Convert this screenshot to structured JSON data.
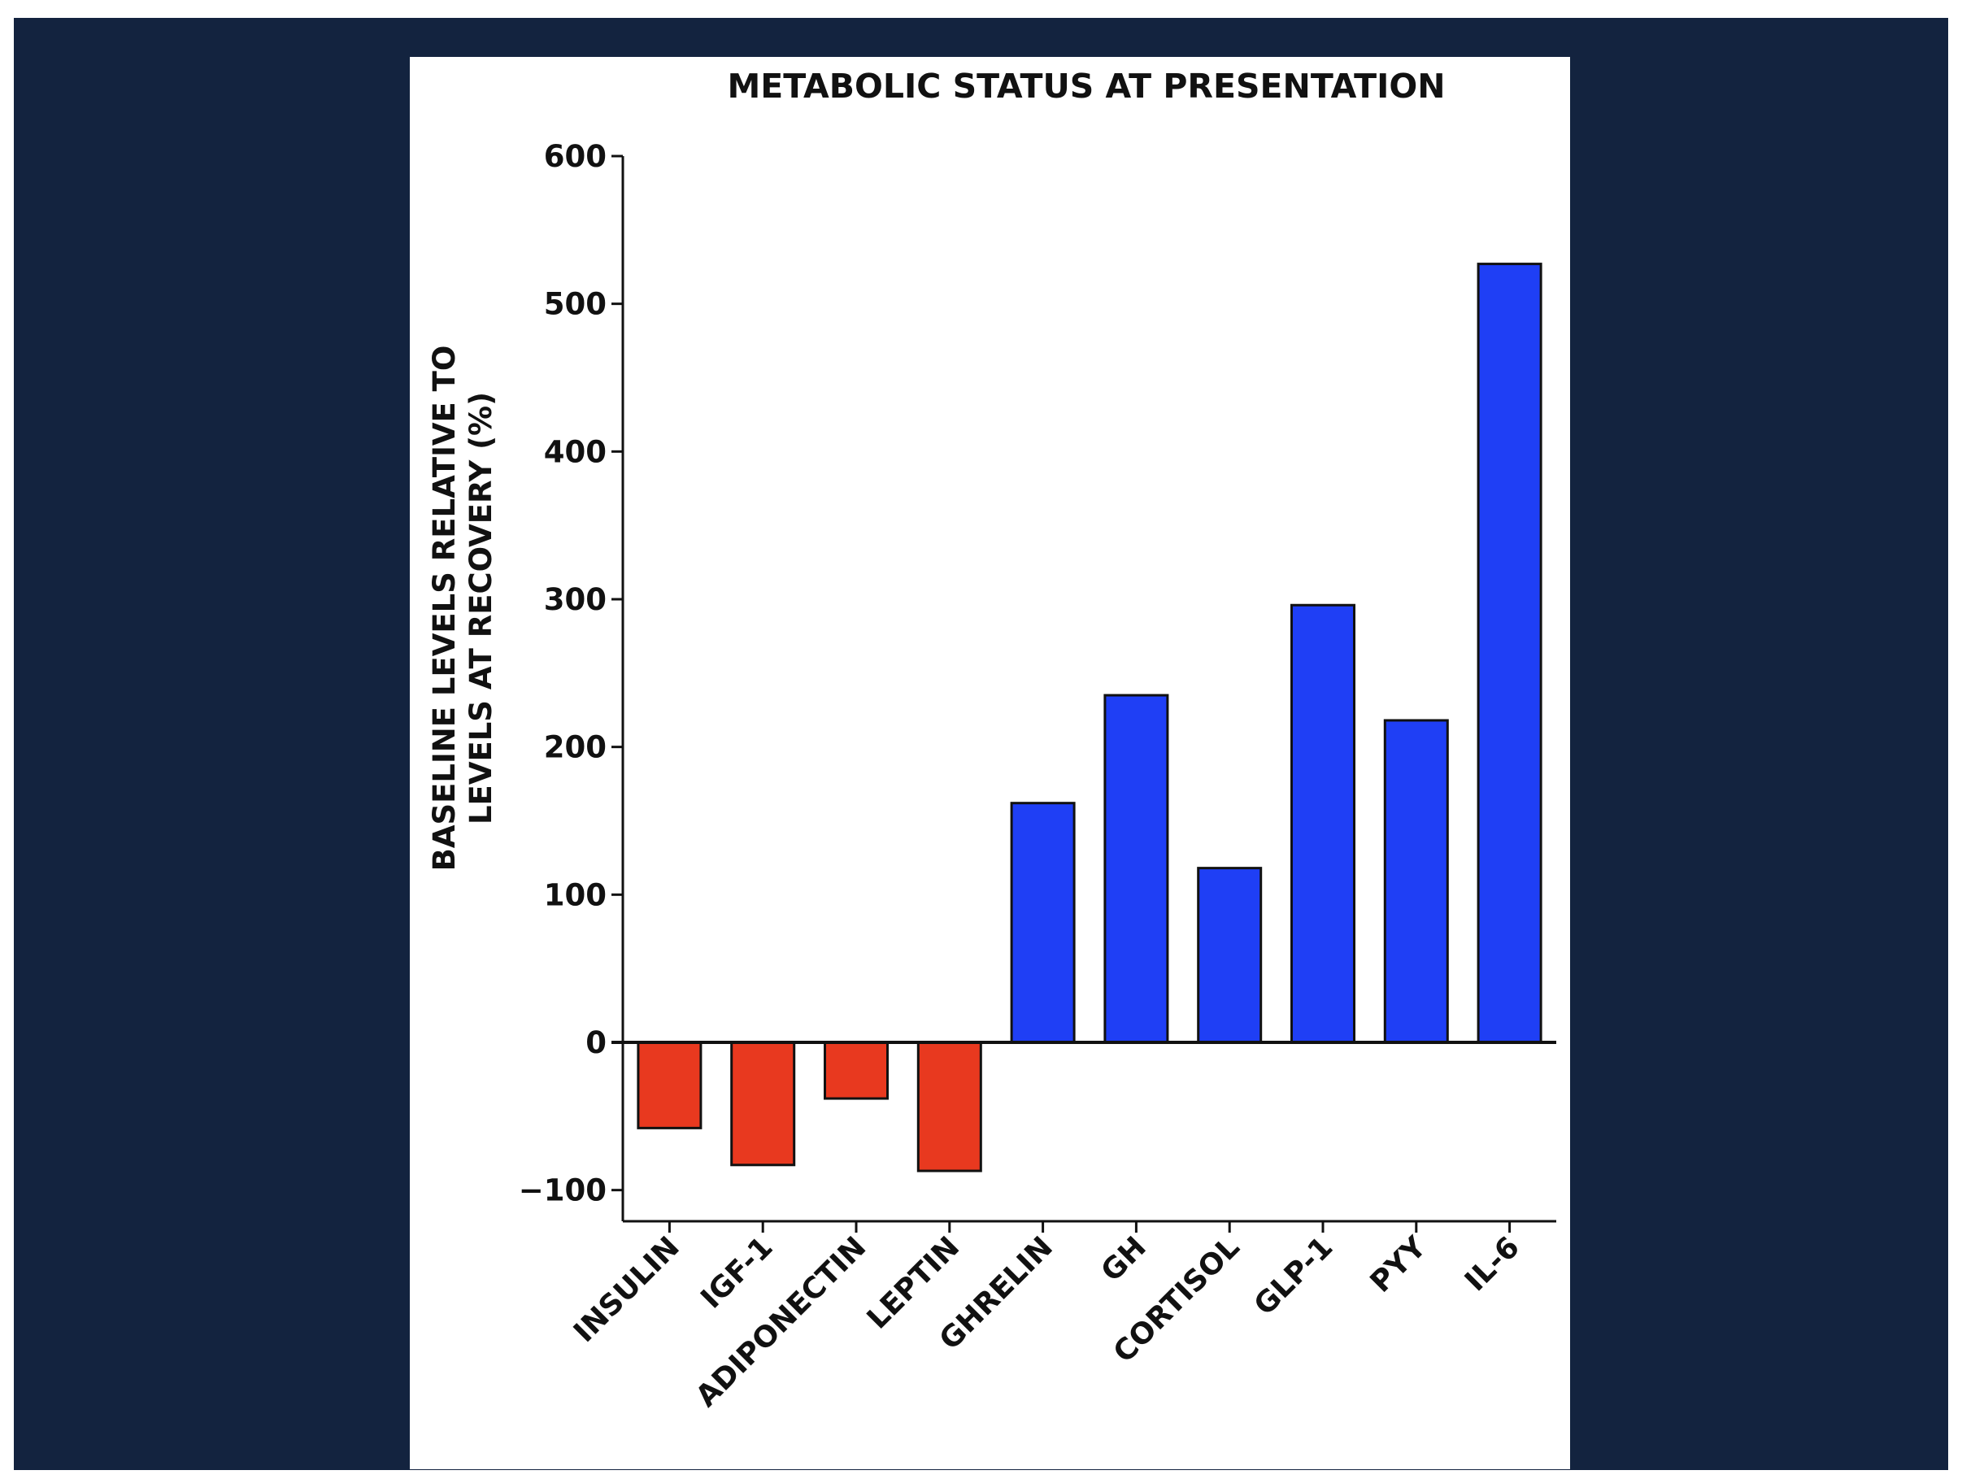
{
  "chart_data": {
    "type": "bar",
    "title": "METABOLIC STATUS AT PRESENTATION",
    "ylabel_lines": [
      "BASELINE LEVELS RELATIVE TO",
      "LEVELS AT RECOVERY (%)"
    ],
    "xlabel": "",
    "categories": [
      "INSULIN",
      "IGF-1",
      "ADIPONECTIN",
      "LEPTIN",
      "GHRELIN",
      "GH",
      "CORTISOL",
      "GLP-1",
      "PYY",
      "IL-6"
    ],
    "values": [
      -58,
      -83,
      -38,
      -87,
      162,
      235,
      118,
      296,
      218,
      527
    ],
    "ylim": [
      -120,
      600
    ],
    "yticks": [
      -100,
      0,
      100,
      200,
      300,
      400,
      500,
      600
    ],
    "ytick_labels": [
      "−100",
      "0",
      "100",
      "200",
      "300",
      "400",
      "500",
      "600"
    ],
    "colors": {
      "negative": "#e8391f",
      "positive": "#1f3ff5",
      "frame": "#13233f",
      "axis": "#111111"
    },
    "grid": false,
    "legend": "none"
  }
}
